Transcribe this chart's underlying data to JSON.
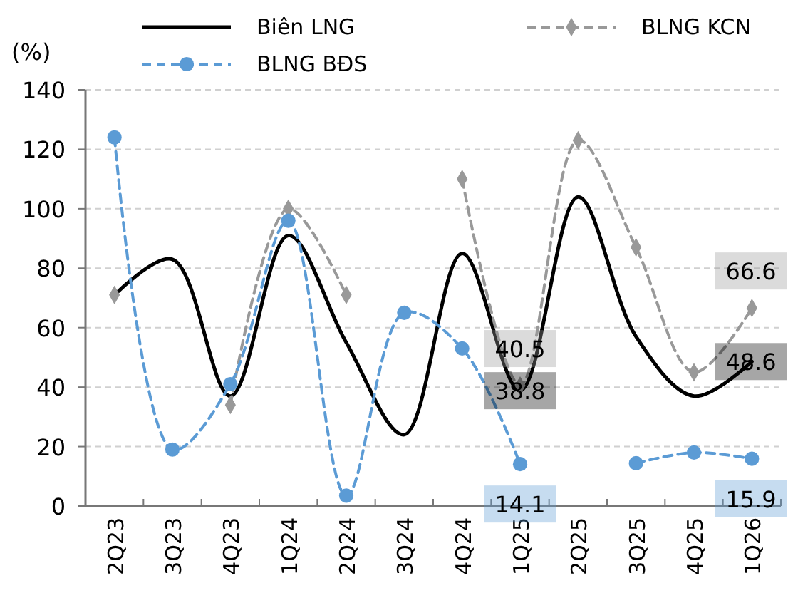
{
  "chart_data": {
    "type": "line",
    "ylabel": "(%)",
    "categories": [
      "2Q23",
      "3Q23",
      "4Q23",
      "1Q24",
      "2Q24",
      "3Q24",
      "4Q24",
      "1Q25",
      "2Q25",
      "3Q25",
      "4Q25",
      "1Q26"
    ],
    "series": [
      {
        "name": "Biên LNG",
        "color": "#000000",
        "line_style": "solid",
        "marker": "none",
        "values": [
          71,
          83,
          37,
          91,
          55,
          24,
          85,
          38.8,
          104,
          57,
          37,
          48.6
        ],
        "value_labels": [
          null,
          null,
          null,
          null,
          null,
          null,
          null,
          "38.8",
          null,
          null,
          null,
          "48.6"
        ]
      },
      {
        "name": "BLNG KCN",
        "color": "#999999",
        "line_style": "dashed",
        "marker": "diamond",
        "values": [
          71,
          null,
          34,
          100,
          71,
          null,
          110,
          40.5,
          123,
          87,
          45,
          66.6
        ],
        "value_labels": [
          null,
          null,
          null,
          null,
          null,
          null,
          null,
          "40.5",
          null,
          null,
          null,
          "66.6"
        ]
      },
      {
        "name": "BLNG BĐS",
        "color": "#5b9bd5",
        "line_style": "dashed",
        "marker": "circle",
        "values": [
          124,
          19,
          41,
          96,
          3.5,
          65,
          53,
          14.1,
          null,
          14.4,
          18,
          15.9
        ],
        "value_labels": [
          null,
          null,
          null,
          null,
          null,
          null,
          null,
          "14.1",
          null,
          null,
          null,
          "15.9"
        ]
      }
    ],
    "ylim": [
      0,
      140
    ],
    "yticks": [
      0,
      20,
      40,
      60,
      80,
      100,
      120,
      140
    ],
    "grid": "y",
    "legend": "top"
  }
}
